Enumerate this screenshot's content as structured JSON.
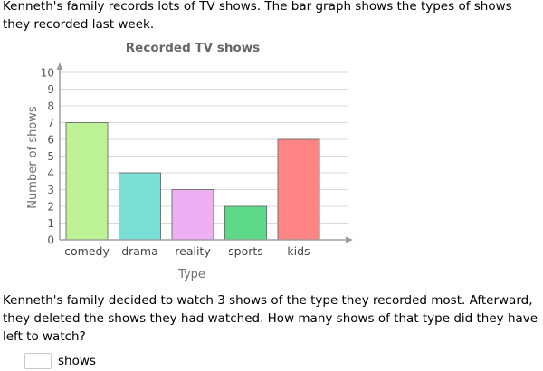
{
  "question": {
    "intro": "Kenneth's family records lots of TV shows. The bar graph shows the types of shows they recorded last week.",
    "prompt": "Kenneth's family decided to watch 3 shows of the type they recorded most. Afterward, they deleted the shows they had watched. How many shows of that type did they have left to watch?"
  },
  "answer": {
    "value": "",
    "unit": "shows"
  },
  "chart_data": {
    "type": "bar",
    "title": "Recorded TV shows",
    "xlabel": "Type",
    "ylabel": "Number of shows",
    "categories": [
      "comedy",
      "drama",
      "reality",
      "sports",
      "kids"
    ],
    "values": [
      7,
      4,
      3,
      2,
      6
    ],
    "colors": [
      "#bdf296",
      "#7adfd4",
      "#eeb0f2",
      "#5ed989",
      "#ff8585"
    ],
    "ylim": [
      0,
      10
    ],
    "yticks": [
      0,
      1,
      2,
      3,
      4,
      5,
      6,
      7,
      8,
      9,
      10
    ],
    "grid": true,
    "legend": "none"
  }
}
